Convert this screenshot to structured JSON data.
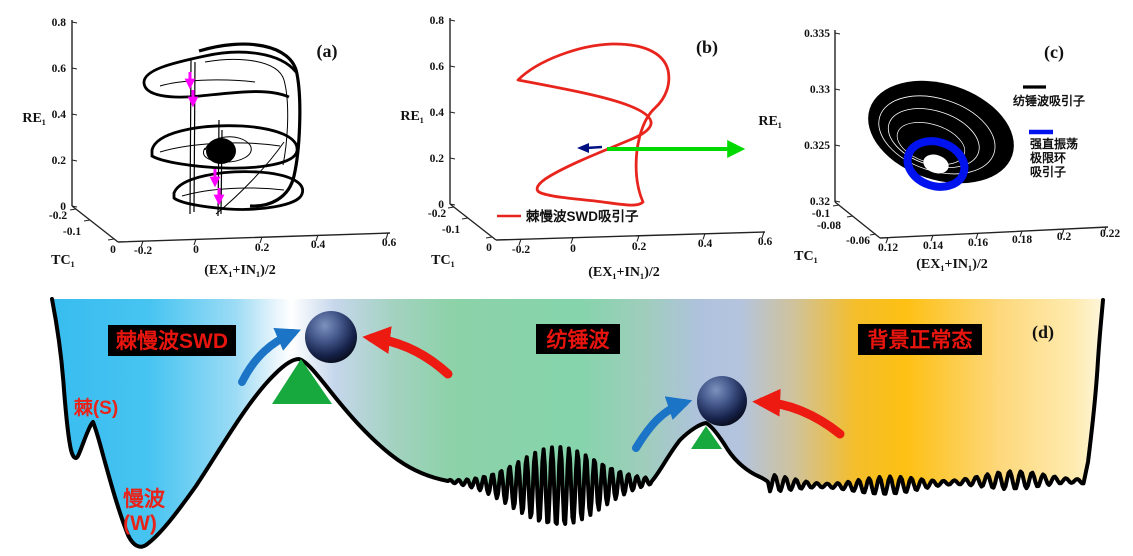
{
  "figure": {
    "background": "#FFFFFF"
  },
  "panels": {
    "a": {
      "label": "(a)",
      "y_axis": {
        "title": "RE₁",
        "ticks": [
          "0.8",
          "0.6",
          "0.4",
          "0.2",
          "0"
        ]
      },
      "z_axis": {
        "title": "TC₁",
        "ticks": [
          "-0.2",
          "-0.1",
          "0"
        ]
      },
      "x_axis": {
        "title": "(EX₁+IN₁)/2",
        "ticks": [
          "-0.2",
          "0",
          "0.2",
          "0.4",
          "0.6"
        ]
      },
      "colors": {
        "attractor": "#000000",
        "direction_arrows": "#FF00FF"
      }
    },
    "b": {
      "label": "(b)",
      "y_axis": {
        "title": "RE₁",
        "ticks": [
          "0.8",
          "0.6",
          "0.4",
          "0.2",
          "0"
        ]
      },
      "z_axis": {
        "title": "TC₁",
        "ticks": [
          "-0.2",
          "-0.1",
          "0"
        ]
      },
      "x_axis": {
        "title": "(EX₁+IN₁)/2",
        "ticks": [
          "-0.2",
          "0",
          "0.2",
          "0.4",
          "0.6"
        ]
      },
      "legend": {
        "label": "棘慢波SWD吸引子",
        "line_color": "#E8251D"
      },
      "colors": {
        "cycle": "#E8251D",
        "transition_arrow": "#00D900",
        "small_arrow": "#001080"
      }
    },
    "c": {
      "label": "(c)",
      "y_axis": {
        "title": "RE₁",
        "ticks": [
          "0.335",
          "0.33",
          "0.325",
          "0.32"
        ]
      },
      "z_axis": {
        "title": "TC₁",
        "ticks": [
          "-0.1",
          "-0.08",
          "-0.06"
        ]
      },
      "x_axis": {
        "title": "(EX₁+IN₁)/2",
        "ticks": [
          "0.12",
          "0.14",
          "0.16",
          "0.18",
          "0.2",
          "0.22"
        ]
      },
      "legend_spindle": {
        "label": "纺锤波吸引子",
        "line_color": "#000000"
      },
      "legend_tonic": {
        "lines": [
          "强直振荡",
          "极限环",
          "吸引子"
        ],
        "line_color": "#0013EE"
      },
      "colors": {
        "attractor": "#000000",
        "limit_cycle": "#0013EE"
      }
    }
  },
  "landscape": {
    "label": "(d)",
    "state_boxes": [
      {
        "text": "棘慢波SWD",
        "bg": "#000000",
        "color": "#E8150F"
      },
      {
        "text": "纺锤波",
        "bg": "#000000",
        "color": "#E8150F"
      },
      {
        "text": "背景正常态",
        "bg": "#000000",
        "color": "#E8150F"
      }
    ],
    "well_labels": {
      "spike": "棘(S)",
      "slow1": "慢波",
      "slow2": "(W)",
      "color": "#E8231A"
    },
    "colors": {
      "swd_region": "#3EBEEF",
      "spindle_region": "#87D4AC",
      "normal_region": "#FDC013",
      "barrier_band": "#AEC3DC",
      "white_band": "#FFFFFF",
      "triangle": "#17A83E",
      "ball_light": "#7D92BE",
      "ball_dark": "#000000",
      "arrow_blue": "#1B74C6",
      "arrow_red": "#EC1A10",
      "outline": "#000000"
    }
  },
  "chart_data": [
    {
      "id": "a",
      "type": "line",
      "subtype": "3d-phase-portrait",
      "panel_label": "(a)",
      "xlabel": "(EX₁+IN₁)/2",
      "ylabel": "RE₁",
      "zlabel": "TC₁",
      "x_ticks": [
        -0.2,
        0,
        0.2,
        0.4,
        0.6
      ],
      "y_ticks": [
        0,
        0.2,
        0.4,
        0.6,
        0.8
      ],
      "z_ticks": [
        -0.2,
        -0.1,
        0
      ],
      "xlim": [
        -0.2,
        0.6
      ],
      "ylim": [
        0,
        0.8
      ],
      "zlim": [
        -0.2,
        0
      ],
      "series": [
        {
          "name": "chaotic SWD attractor",
          "color": "#000000"
        }
      ],
      "annotations": [
        {
          "type": "direction-arrows",
          "color": "#FF00FF",
          "count": 4
        }
      ]
    },
    {
      "id": "b",
      "type": "line",
      "subtype": "3d-phase-portrait",
      "panel_label": "(b)",
      "xlabel": "(EX₁+IN₁)/2",
      "ylabel": "RE₁",
      "zlabel": "TC₁",
      "x_ticks": [
        -0.2,
        0,
        0.2,
        0.4,
        0.6
      ],
      "y_ticks": [
        0,
        0.2,
        0.4,
        0.6,
        0.8
      ],
      "z_ticks": [
        -0.2,
        -0.1,
        0
      ],
      "xlim": [
        -0.2,
        0.6
      ],
      "ylim": [
        0,
        0.8
      ],
      "zlim": [
        -0.2,
        0
      ],
      "series": [
        {
          "name": "棘慢波SWD吸引子",
          "color": "#E8251D",
          "style": "limit-cycle"
        }
      ],
      "legend_position": "bottom-left-inside",
      "annotations": [
        {
          "type": "transition-arrow",
          "color": "#00D900",
          "direction": "right"
        },
        {
          "type": "small-arrow",
          "color": "#001080"
        }
      ]
    },
    {
      "id": "c",
      "type": "line",
      "subtype": "3d-phase-portrait",
      "panel_label": "(c)",
      "xlabel": "(EX₁+IN₁)/2",
      "ylabel": "RE₁",
      "zlabel": "TC₁",
      "x_ticks": [
        0.12,
        0.14,
        0.16,
        0.18,
        0.2,
        0.22
      ],
      "y_ticks": [
        0.32,
        0.325,
        0.33,
        0.335
      ],
      "z_ticks": [
        -0.1,
        -0.08,
        -0.06
      ],
      "xlim": [
        0.12,
        0.22
      ],
      "ylim": [
        0.32,
        0.335
      ],
      "zlim": [
        -0.1,
        -0.06
      ],
      "series": [
        {
          "name": "纺锤波吸引子",
          "color": "#000000",
          "style": "torus-attractor"
        },
        {
          "name": "强直振荡极限环吸引子",
          "color": "#0013EE",
          "style": "limit-cycle-ring"
        }
      ],
      "legend_position": "right-inside"
    },
    {
      "id": "d",
      "type": "area",
      "subtype": "potential-landscape-diagram",
      "panel_label": "(d)",
      "regions": [
        {
          "label": "棘慢波SWD",
          "color": "#3EBEEF"
        },
        {
          "label": "纺锤波",
          "color": "#87D4AC"
        },
        {
          "label": "背景正常态",
          "color": "#FDC013"
        }
      ],
      "well_annotations": [
        "棘(S)",
        "慢波(W)"
      ],
      "features": [
        "two barrier hills with balls",
        "green barrier triangles",
        "blue and red transition arrows",
        "spindle wave packet in middle valley",
        "irregular background oscillation on right valley floor"
      ]
    }
  ]
}
